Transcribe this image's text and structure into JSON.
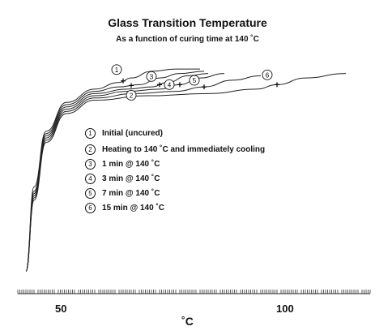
{
  "chart_data": {
    "type": "line",
    "title": "Glass Transition Temperature",
    "subtitle": "As a function of curing time at 140 ˚C",
    "xlabel": "˚C",
    "ylabel": "",
    "xlim": [
      33,
      120
    ],
    "ylim": [
      0,
      100
    ],
    "x_ticks": [
      "50",
      "100"
    ],
    "grid": false,
    "legend_position": "center",
    "series": [
      {
        "marker": "1",
        "label": "Initial (uncured)",
        "tg": 59,
        "points": [
          [
            35,
            2
          ],
          [
            37,
            40
          ],
          [
            40,
            65
          ],
          [
            45,
            78
          ],
          [
            52,
            84
          ],
          [
            58,
            87
          ],
          [
            61,
            89
          ],
          [
            66,
            92
          ],
          [
            72,
            93
          ],
          [
            78,
            93
          ]
        ]
      },
      {
        "marker": "2",
        "label": "Heating to 140 ˚C and immediately cooling",
        "tg": 61,
        "points": [
          [
            35,
            2
          ],
          [
            37,
            38
          ],
          [
            40,
            64
          ],
          [
            45,
            77
          ],
          [
            52,
            83
          ],
          [
            58,
            85
          ],
          [
            63,
            86
          ],
          [
            68,
            89
          ],
          [
            73,
            91
          ],
          [
            79,
            92
          ]
        ]
      },
      {
        "marker": "3",
        "label": "1 min @ 140 ˚C",
        "tg": 68,
        "points": [
          [
            35,
            2
          ],
          [
            37,
            37
          ],
          [
            40,
            63
          ],
          [
            45,
            76
          ],
          [
            52,
            82
          ],
          [
            60,
            84
          ],
          [
            66,
            85
          ],
          [
            70,
            87
          ],
          [
            75,
            90
          ],
          [
            80,
            91
          ]
        ]
      },
      {
        "marker": "4",
        "label": "3 min @ 140 ˚C",
        "tg": 73,
        "points": [
          [
            35,
            2
          ],
          [
            37,
            36
          ],
          [
            40,
            62
          ],
          [
            45,
            75
          ],
          [
            52,
            81
          ],
          [
            60,
            83
          ],
          [
            68,
            84
          ],
          [
            73,
            86
          ],
          [
            78,
            89
          ],
          [
            84,
            91
          ]
        ]
      },
      {
        "marker": "5",
        "label": "7 min @ 140 ˚C",
        "tg": 79,
        "points": [
          [
            35,
            2
          ],
          [
            37,
            35
          ],
          [
            40,
            61
          ],
          [
            45,
            74
          ],
          [
            52,
            80
          ],
          [
            62,
            82
          ],
          [
            72,
            83
          ],
          [
            79,
            85
          ],
          [
            86,
            88
          ],
          [
            93,
            90
          ]
        ]
      },
      {
        "marker": "6",
        "label": "15 min @ 140 ˚C",
        "tg": 97,
        "points": [
          [
            35,
            2
          ],
          [
            37,
            34
          ],
          [
            40,
            60
          ],
          [
            45,
            73
          ],
          [
            52,
            79
          ],
          [
            65,
            81
          ],
          [
            80,
            82
          ],
          [
            92,
            84
          ],
          [
            97,
            86
          ],
          [
            104,
            89
          ],
          [
            114,
            91
          ]
        ]
      }
    ]
  }
}
